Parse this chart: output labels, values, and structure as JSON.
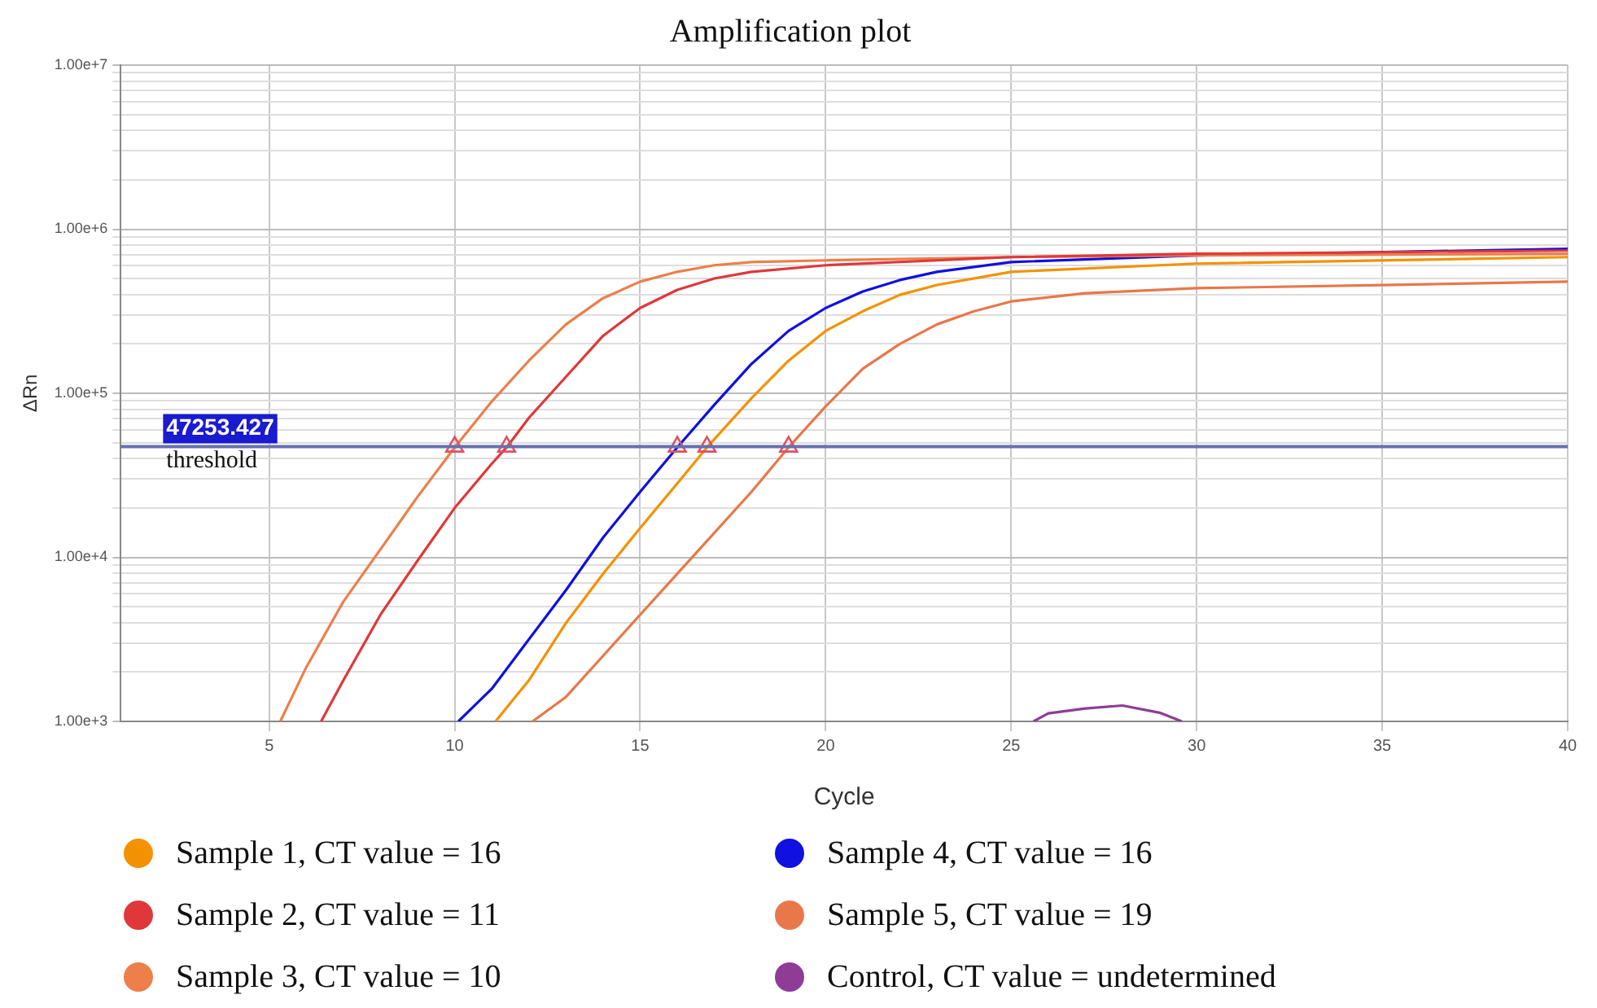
{
  "chart_data": {
    "type": "line",
    "title": "Amplification plot",
    "xlabel": "Cycle",
    "ylabel": "ΔRn",
    "log": "y",
    "grid": true,
    "legend": "bottom",
    "line_style": "solid",
    "xlim": [
      1,
      40
    ],
    "xticks": [
      5,
      10,
      15,
      20,
      25,
      30,
      35,
      40
    ],
    "ylim": [
      1000,
      10000000
    ],
    "yticks": [
      {
        "value": 1000,
        "label": "1.00e+3"
      },
      {
        "value": 2000,
        "label": null
      },
      {
        "value": 3000,
        "label": null
      },
      {
        "value": 4000,
        "label": null
      },
      {
        "value": 5000,
        "label": null
      },
      {
        "value": 6000,
        "label": null
      },
      {
        "value": 7000,
        "label": null
      },
      {
        "value": 8000,
        "label": null
      },
      {
        "value": 9000,
        "label": null
      },
      {
        "value": 10000,
        "label": "1.00e+4"
      },
      {
        "value": 20000,
        "label": null
      },
      {
        "value": 30000,
        "label": null
      },
      {
        "value": 40000,
        "label": null
      },
      {
        "value": 50000,
        "label": null
      },
      {
        "value": 60000,
        "label": null
      },
      {
        "value": 70000,
        "label": null
      },
      {
        "value": 80000,
        "label": null
      },
      {
        "value": 90000,
        "label": null
      },
      {
        "value": 100000,
        "label": "1.00e+5"
      },
      {
        "value": 200000,
        "label": null
      },
      {
        "value": 300000,
        "label": null
      },
      {
        "value": 400000,
        "label": null
      },
      {
        "value": 500000,
        "label": null
      },
      {
        "value": 600000,
        "label": null
      },
      {
        "value": 700000,
        "label": null
      },
      {
        "value": 800000,
        "label": null
      },
      {
        "value": 900000,
        "label": null
      },
      {
        "value": 1000000,
        "label": "1.00e+6"
      },
      {
        "value": 2000000,
        "label": null
      },
      {
        "value": 3000000,
        "label": null
      },
      {
        "value": 4000000,
        "label": null
      },
      {
        "value": 5000000,
        "label": null
      },
      {
        "value": 6000000,
        "label": null
      },
      {
        "value": 7000000,
        "label": null
      },
      {
        "value": 8000000,
        "label": null
      },
      {
        "value": 9000000,
        "label": null
      },
      {
        "value": 10000000,
        "label": "1.00e+7"
      }
    ],
    "annotations": [
      {
        "text": "47253.427",
        "y": 47253.427
      }
    ],
    "ref_lines": [
      {
        "axis": "y",
        "value": 47253.427,
        "label": "threshold",
        "color": "#6670b0"
      }
    ],
    "series": [
      {
        "name": "Sample 1, CT value = 16",
        "color": "#f39200",
        "x": [
          11.1,
          12,
          13,
          14,
          15,
          16,
          16.8,
          18,
          19,
          20,
          21,
          22,
          23,
          25,
          30,
          40
        ],
        "values": [
          1000,
          1780,
          3980,
          7940,
          15100,
          28200,
          46800,
          93300,
          158000,
          240000,
          316000,
          398000,
          457000,
          550000,
          617000,
          676000
        ]
      },
      {
        "name": "Sample 2, CT value = 11",
        "color": "#e0383a",
        "x": [
          6.4,
          7,
          8,
          9,
          10,
          11,
          11.4,
          12,
          13,
          14,
          15,
          16,
          17,
          18,
          20,
          25,
          30,
          40
        ],
        "values": [
          1000,
          1780,
          4470,
          9550,
          20000,
          37200,
          46800,
          70800,
          126000,
          224000,
          331000,
          427000,
          501000,
          550000,
          603000,
          676000,
          708000,
          741000
        ]
      },
      {
        "name": "Sample 3, CT value = 10",
        "color": "#ec7f4a",
        "x": [
          5.3,
          6,
          7,
          8,
          9,
          10,
          11,
          12,
          13,
          14,
          15,
          16,
          17,
          18,
          20,
          25,
          30,
          40
        ],
        "values": [
          1000,
          2140,
          5370,
          11200,
          23400,
          46800,
          89100,
          158000,
          263000,
          380000,
          479000,
          550000,
          603000,
          631000,
          646000,
          676000,
          692000,
          708000
        ]
      },
      {
        "name": "Sample 4, CT value = 16",
        "color": "#1010e0",
        "x": [
          10.1,
          11,
          12,
          13,
          14,
          15,
          16,
          17,
          18,
          19,
          20,
          21,
          22,
          23,
          25,
          30,
          40
        ],
        "values": [
          1000,
          1580,
          3160,
          6310,
          13200,
          25100,
          46800,
          85100,
          151000,
          240000,
          331000,
          417000,
          490000,
          550000,
          631000,
          692000,
          759000
        ]
      },
      {
        "name": "Sample 5, CT value = 19",
        "color": "#e8784a",
        "x": [
          12.1,
          13,
          14,
          15,
          16,
          17,
          18,
          19,
          20,
          21,
          22,
          23,
          24,
          25,
          27,
          30,
          35,
          40
        ],
        "values": [
          1000,
          1410,
          2510,
          4470,
          7940,
          14100,
          25100,
          46800,
          83200,
          141000,
          200000,
          263000,
          316000,
          363000,
          407000,
          437000,
          457000,
          479000
        ]
      },
      {
        "name": "Control, CT value = undetermined",
        "color": "#8e3c96",
        "x": [
          25.6,
          26,
          27,
          28,
          29,
          29.6
        ],
        "values": [
          1000,
          1120,
          1200,
          1250,
          1130,
          1000
        ]
      },
      {
        "type": "scatter",
        "marker": "triangle",
        "color": "#e05060",
        "x": [
          10.0,
          11.4,
          16.0,
          16.8,
          19.0
        ],
        "values": [
          47253.427,
          47253.427,
          47253.427,
          47253.427,
          47253.427
        ]
      }
    ]
  }
}
